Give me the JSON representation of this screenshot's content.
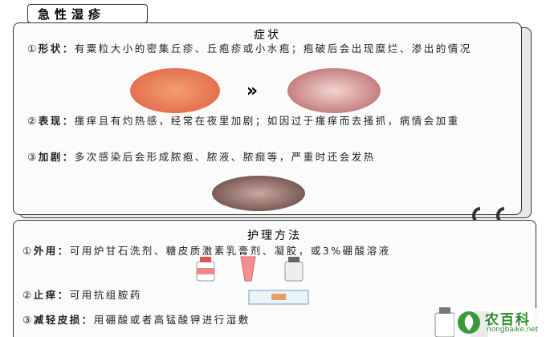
{
  "title": "急性湿疹",
  "symptoms": {
    "heading": "症状",
    "items": [
      {
        "marker": "①",
        "label": "形状：",
        "text": "有粟粒大小的密集丘疹、丘疱疹或小水疱；疱破后会出现糜烂、渗出的情况"
      },
      {
        "marker": "②",
        "label": "表现：",
        "text": "瘙痒且有灼热感，经常在夜里加剧；如因过于瘙痒而去搔抓，病情会加重"
      },
      {
        "marker": "③",
        "label": "加剧：",
        "text": "多次感染后会形成脓疱、脓液、脓痂等，严重时还会发热"
      }
    ],
    "arrow": "»"
  },
  "care": {
    "heading": "护理方法",
    "items": [
      {
        "marker": "①",
        "label": "外用：",
        "text": "可用炉甘石洗剂、糖皮质激素乳膏剂、凝胶，或3%硼酸溶液"
      },
      {
        "marker": "②",
        "label": "止痒：",
        "text": "可用抗组胺药"
      },
      {
        "marker": "③",
        "label": "减轻皮损：",
        "text": "用硼酸或者高锰酸钾进行湿敷"
      }
    ]
  },
  "logo": {
    "name": "农百科",
    "url": "nongbaike.net"
  }
}
